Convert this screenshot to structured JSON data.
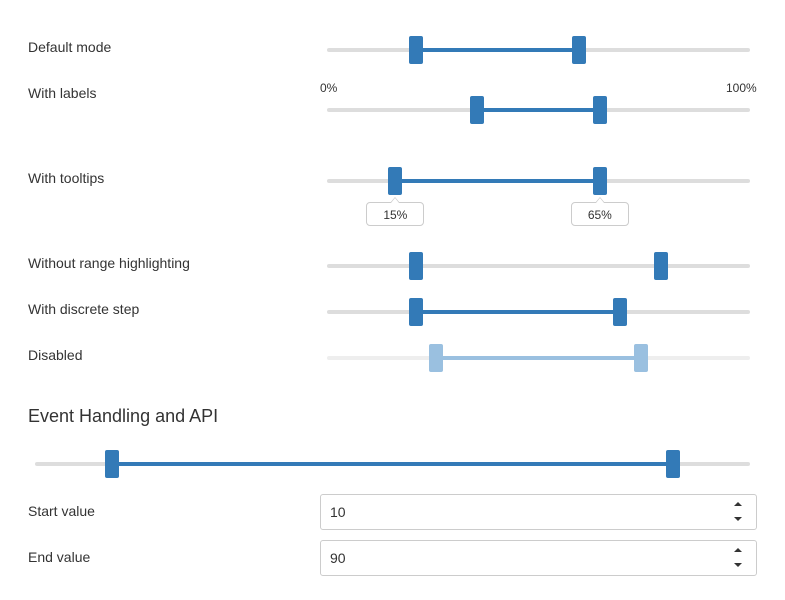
{
  "sliders": [
    {
      "label": "Default mode",
      "start": 20,
      "end": 60,
      "highlight": true,
      "disabled": false
    },
    {
      "label": "With labels",
      "start": 35,
      "end": 65,
      "highlight": true,
      "disabled": false,
      "min_label": "0%",
      "max_label": "100%"
    },
    {
      "label": "With tooltips",
      "start": 15,
      "end": 65,
      "highlight": true,
      "disabled": false,
      "tooltip_start": "15%",
      "tooltip_end": "65%"
    },
    {
      "label": "Without range highlighting",
      "start": 20,
      "end": 80,
      "highlight": false,
      "disabled": false
    },
    {
      "label": "With discrete step",
      "start": 20,
      "end": 70,
      "highlight": true,
      "disabled": false
    },
    {
      "label": "Disabled",
      "start": 25,
      "end": 75,
      "highlight": true,
      "disabled": true
    }
  ],
  "event_section": {
    "heading": "Event Handling and API",
    "slider": {
      "start": 10,
      "end": 90,
      "highlight": true,
      "disabled": false
    },
    "start_label": "Start value",
    "start_value": "10",
    "end_label": "End value",
    "end_value": "90"
  },
  "colors": {
    "accent": "#337ab7",
    "track": "#dddddd",
    "disabled_accent": "#9ac0e0"
  }
}
